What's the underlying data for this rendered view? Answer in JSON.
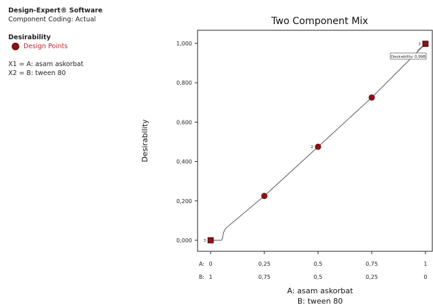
{
  "info": {
    "software": "Design-Expert® Software",
    "coding": "Component Coding: Actual",
    "response": "Desirability",
    "legend_label": "Design Points",
    "x1": "X1 = A: asam askorbat",
    "x2": "X2 = B: tween 80"
  },
  "colors": {
    "point": "#8e1117",
    "line": "#555555",
    "legend_text": "#c0282d"
  },
  "chart_data": {
    "type": "line",
    "title": "Two Component Mix",
    "ylabel": "Desirability",
    "xlabel_a": "A: asam askorbat",
    "xlabel_b": "B: tween 80",
    "ylim": [
      0,
      1
    ],
    "xlim": [
      0,
      1
    ],
    "y_ticks": [
      "0,000",
      "0,200",
      "0,400",
      "0,600",
      "0,800",
      "1,000"
    ],
    "y_tick_values": [
      0,
      0.2,
      0.4,
      0.6,
      0.8,
      1.0
    ],
    "x_tick_values": [
      0,
      0.25,
      0.5,
      0.75,
      1
    ],
    "x_row_a_label": "A:",
    "x_row_b_label": "B:",
    "x_ticks_a": [
      "0",
      "0,25",
      "0,5",
      "0,75",
      "1"
    ],
    "x_ticks_b": [
      "1",
      "0,75",
      "0,5",
      "0,25",
      "0"
    ],
    "curve": [
      {
        "x": 0,
        "y": 0
      },
      {
        "x": 0.05,
        "y": 0
      },
      {
        "x": 0.055,
        "y": 0.01
      },
      {
        "x": 0.06,
        "y": 0.04
      },
      {
        "x": 0.07,
        "y": 0.06
      },
      {
        "x": 0.25,
        "y": 0.225
      },
      {
        "x": 0.5,
        "y": 0.475
      },
      {
        "x": 0.75,
        "y": 0.725
      },
      {
        "x": 1,
        "y": 0.998
      }
    ],
    "points": [
      {
        "x": 0,
        "y": 0,
        "count": "3",
        "marker": "square"
      },
      {
        "x": 0.25,
        "y": 0.225,
        "count": "",
        "marker": "circle"
      },
      {
        "x": 0.5,
        "y": 0.475,
        "count": "2",
        "marker": "circle"
      },
      {
        "x": 0.75,
        "y": 0.725,
        "count": "",
        "marker": "circle"
      },
      {
        "x": 1,
        "y": 0.998,
        "count": "3",
        "marker": "square"
      }
    ],
    "annotation": "Desirability: 0,998"
  }
}
